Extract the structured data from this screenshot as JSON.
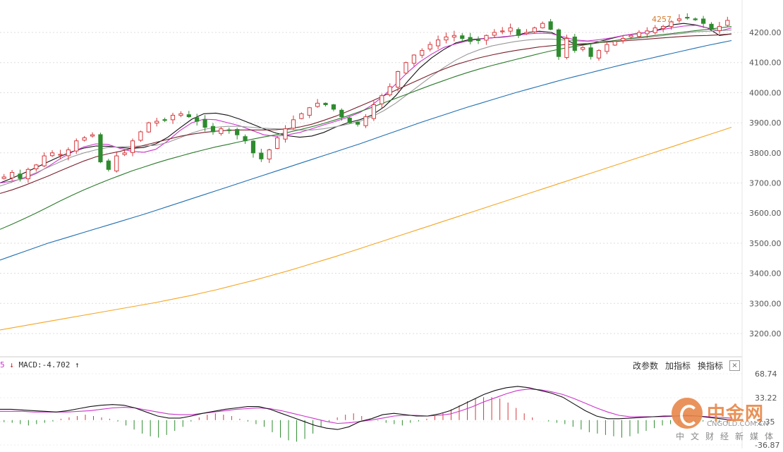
{
  "price_pane": {
    "y_tick_labels": [
      "4200.00",
      "4100.00",
      "4000.00",
      "3900.00",
      "3800.00",
      "3700.00",
      "3600.00",
      "3500.00",
      "3400.00",
      "3300.00",
      "3200.00"
    ],
    "peak_label": "4257.",
    "peak_value": 4257,
    "colors": {
      "up": "#d6393c",
      "down": "#2e8b2e",
      "grid": "#dddddd"
    }
  },
  "macd_pane": {
    "period_digit": "5",
    "label": "MACD:-4.702",
    "y_tick_labels": [
      "68.74",
      "33.22",
      "-2.35",
      "-36.87"
    ]
  },
  "toolbar": {
    "change_params": "改参数",
    "add_indicator": "加指标",
    "swap_indicator": "换指标",
    "close_symbol": "×"
  },
  "watermark": {
    "brand": "中金网",
    "domain": "CNGOLD.COM.CN",
    "subtitle": "中文财经新媒体"
  },
  "chart_data": [
    {
      "type": "candlestick",
      "ylim": [
        3150,
        4280
      ],
      "y_ticks": [
        3200,
        3300,
        3400,
        3500,
        3600,
        3700,
        3800,
        3900,
        4000,
        4100,
        4200
      ],
      "grid": true,
      "close_path": [
        3720,
        3735,
        3715,
        3745,
        3760,
        3790,
        3800,
        3795,
        3810,
        3840,
        3850,
        3860,
        3770,
        3745,
        3790,
        3800,
        3840,
        3870,
        3900,
        3905,
        3910,
        3925,
        3930,
        3920,
        3905,
        3885,
        3870,
        3880,
        3875,
        3860,
        3840,
        3800,
        3780,
        3810,
        3850,
        3880,
        3910,
        3930,
        3950,
        3965,
        3960,
        3945,
        3920,
        3900,
        3895,
        3920,
        3960,
        3990,
        4020,
        4070,
        4100,
        4125,
        4140,
        4160,
        4175,
        4185,
        4190,
        4180,
        4170,
        4175,
        4190,
        4200,
        4205,
        4215,
        4190,
        4200,
        4215,
        4230,
        4210,
        4120,
        4180,
        4140,
        4150,
        4120,
        4140,
        4160,
        4170,
        4180,
        4190,
        4200,
        4205,
        4215,
        4220,
        4235,
        4245,
        4250,
        4242,
        4230,
        4210,
        4220,
        4240
      ],
      "ma_series": [
        {
          "color": "#111111",
          "values": [
            3700,
            3716,
            3733,
            3751,
            3770,
            3788,
            3804,
            3816,
            3823,
            3822,
            3818,
            3815,
            3818,
            3830,
            3852,
            3883,
            3912,
            3930,
            3932,
            3925,
            3912,
            3896,
            3880,
            3866,
            3857,
            3852,
            3856,
            3868,
            3886,
            3900,
            3910,
            3925,
            3952,
            3990,
            4038,
            4082,
            4116,
            4143,
            4165,
            4175,
            4179,
            4182,
            4185,
            4190,
            4200,
            4204,
            4200,
            4180,
            4160,
            4160,
            4170,
            4180,
            4190,
            4195,
            4200,
            4210,
            4225,
            4230,
            4225,
            4215,
            4190,
            4195
          ]
        },
        {
          "color": "#cc33cc",
          "values": [
            3700,
            3706,
            3715,
            3731,
            3754,
            3780,
            3802,
            3820,
            3830,
            3828,
            3815,
            3805,
            3802,
            3812,
            3840,
            3874,
            3900,
            3912,
            3910,
            3900,
            3890,
            3875,
            3860,
            3855,
            3860,
            3868,
            3880,
            3893,
            3905,
            3918,
            3934,
            3958,
            3990,
            4028,
            4068,
            4102,
            4128,
            4150,
            4162,
            4172,
            4178,
            4182,
            4186,
            4190,
            4195,
            4198,
            4196,
            4185,
            4175,
            4172,
            4176,
            4182,
            4190,
            4196,
            4200,
            4208,
            4215,
            4221,
            4224,
            4215,
            4205,
            4215
          ]
        },
        {
          "color": "#999999",
          "values": [
            3690,
            3703,
            3718,
            3734,
            3752,
            3770,
            3787,
            3800,
            3810,
            3818,
            3820,
            3822,
            3823,
            3825,
            3835,
            3850,
            3866,
            3878,
            3885,
            3888,
            3888,
            3885,
            3882,
            3880,
            3878,
            3876,
            3876,
            3880,
            3887,
            3895,
            3905,
            3920,
            3940,
            3965,
            3995,
            4025,
            4055,
            4083,
            4108,
            4128,
            4143,
            4155,
            4163,
            4170,
            4175,
            4178,
            4178,
            4175,
            4172,
            4170,
            4170,
            4172,
            4176,
            4180,
            4184,
            4188,
            4193,
            4197,
            4202,
            4204,
            4206,
            4208
          ]
        },
        {
          "color": "#7a1f2b",
          "values": [
            3665,
            3677,
            3691,
            3707,
            3723,
            3740,
            3757,
            3773,
            3787,
            3797,
            3805,
            3815,
            3825,
            3835,
            3845,
            3855,
            3862,
            3868,
            3872,
            3875,
            3876,
            3876,
            3876,
            3877,
            3880,
            3886,
            3895,
            3908,
            3922,
            3938,
            3955,
            3972,
            3990,
            4008,
            4026,
            4044,
            4062,
            4078,
            4093,
            4105,
            4116,
            4125,
            4133,
            4140,
            4146,
            4152,
            4156,
            4159,
            4161,
            4163,
            4166,
            4169,
            4172,
            4175,
            4178,
            4181,
            4184,
            4187,
            4189,
            4190,
            4192,
            4195
          ]
        },
        {
          "color": "#2b7a2b",
          "values": [
            3546,
            3563,
            3581,
            3600,
            3620,
            3640,
            3659,
            3677,
            3694,
            3710,
            3725,
            3740,
            3753,
            3766,
            3778,
            3789,
            3800,
            3810,
            3820,
            3828,
            3837,
            3845,
            3853,
            3860,
            3868,
            3877,
            3887,
            3898,
            3910,
            3923,
            3937,
            3951,
            3966,
            3981,
            3996,
            4011,
            4026,
            4040,
            4054,
            4067,
            4079,
            4090,
            4100,
            4110,
            4120,
            4130,
            4139,
            4147,
            4154,
            4160,
            4166,
            4172,
            4177,
            4182,
            4187,
            4192,
            4196,
            4201,
            4206,
            4210,
            4215,
            4220
          ]
        },
        {
          "color": "#1f6fb2",
          "values": [
            3444,
            3458,
            3472,
            3486,
            3500,
            3512,
            3524,
            3536,
            3548,
            3560,
            3572,
            3584,
            3596,
            3609,
            3622,
            3635,
            3648,
            3661,
            3674,
            3687,
            3700,
            3713,
            3726,
            3739,
            3752,
            3765,
            3778,
            3791,
            3804,
            3817,
            3830,
            3844,
            3858,
            3872,
            3886,
            3900,
            3913,
            3926,
            3939,
            3952,
            3964,
            3976,
            3988,
            4000,
            4011,
            4022,
            4033,
            4044,
            4054,
            4064,
            4074,
            4084,
            4094,
            4103,
            4112,
            4121,
            4130,
            4139,
            4148,
            4157,
            4165,
            4173
          ]
        },
        {
          "color": "#f5a623",
          "values": [
            3212,
            3219,
            3226,
            3233,
            3240,
            3247,
            3254,
            3261,
            3268,
            3275,
            3282,
            3289,
            3296,
            3303,
            3311,
            3319,
            3327,
            3336,
            3345,
            3355,
            3365,
            3375,
            3386,
            3397,
            3408,
            3420,
            3432,
            3444,
            3456,
            3469,
            3482,
            3495,
            3508,
            3521,
            3534,
            3547,
            3560,
            3573,
            3586,
            3599,
            3612,
            3625,
            3638,
            3651,
            3664,
            3677,
            3690,
            3703,
            3716,
            3729,
            3742,
            3755,
            3768,
            3781,
            3794,
            3807,
            3820,
            3833,
            3846,
            3859,
            3872,
            3885
          ]
        }
      ]
    },
    {
      "type": "bar",
      "name": "MACD",
      "ylim": [
        -42,
        75
      ],
      "y_ticks": [
        68.74,
        33.22,
        -2.35,
        -36.87
      ],
      "histogram": [
        -3,
        -4,
        -6,
        -8,
        -6,
        -4,
        -2,
        2,
        4,
        6,
        8,
        6,
        4,
        2,
        -2,
        -8,
        -14,
        -20,
        -24,
        -26,
        -22,
        -16,
        -10,
        -2,
        4,
        8,
        10,
        8,
        6,
        2,
        -2,
        -6,
        -10,
        -18,
        -26,
        -30,
        -32,
        -28,
        -20,
        -10,
        -2,
        4,
        8,
        10,
        6,
        2,
        -1,
        -4,
        -6,
        -8,
        -4,
        -2,
        2,
        6,
        10,
        16,
        22,
        28,
        32,
        34,
        34,
        32,
        26,
        18,
        10,
        4,
        0,
        -2,
        -4,
        -6,
        -10,
        -14,
        -18,
        -20,
        -22,
        -24,
        -26,
        -24,
        -20,
        -16,
        -12,
        -8,
        -6,
        -4,
        -3,
        -2,
        -2,
        -3,
        -4,
        -5
      ],
      "dif": [
        16,
        16,
        15,
        14,
        13,
        12,
        14,
        17,
        20,
        22,
        23,
        22,
        18,
        12,
        6,
        3,
        3,
        6,
        10,
        13,
        16,
        18,
        20,
        20,
        16,
        10,
        4,
        -2,
        -8,
        -12,
        -14,
        -10,
        -2,
        2,
        8,
        10,
        8,
        6,
        6,
        9,
        14,
        22,
        30,
        38,
        44,
        48,
        50,
        48,
        44,
        40,
        34,
        24,
        14,
        6,
        2,
        2,
        3,
        4,
        5,
        6,
        6,
        7,
        6,
        4,
        2,
        0
      ],
      "dea": [
        13,
        13,
        13,
        12,
        12,
        12,
        12,
        13,
        14,
        16,
        18,
        19,
        18,
        15,
        12,
        9,
        8,
        8,
        10,
        12,
        14,
        16,
        17,
        18,
        17,
        14,
        10,
        6,
        2,
        -2,
        -5,
        -4,
        -2,
        0,
        3,
        6,
        7,
        7,
        6,
        7,
        9,
        14,
        20,
        27,
        33,
        39,
        44,
        46,
        45,
        42,
        38,
        32,
        25,
        18,
        12,
        7,
        5,
        5,
        5,
        5,
        6,
        6,
        6,
        5,
        4,
        3
      ]
    }
  ]
}
